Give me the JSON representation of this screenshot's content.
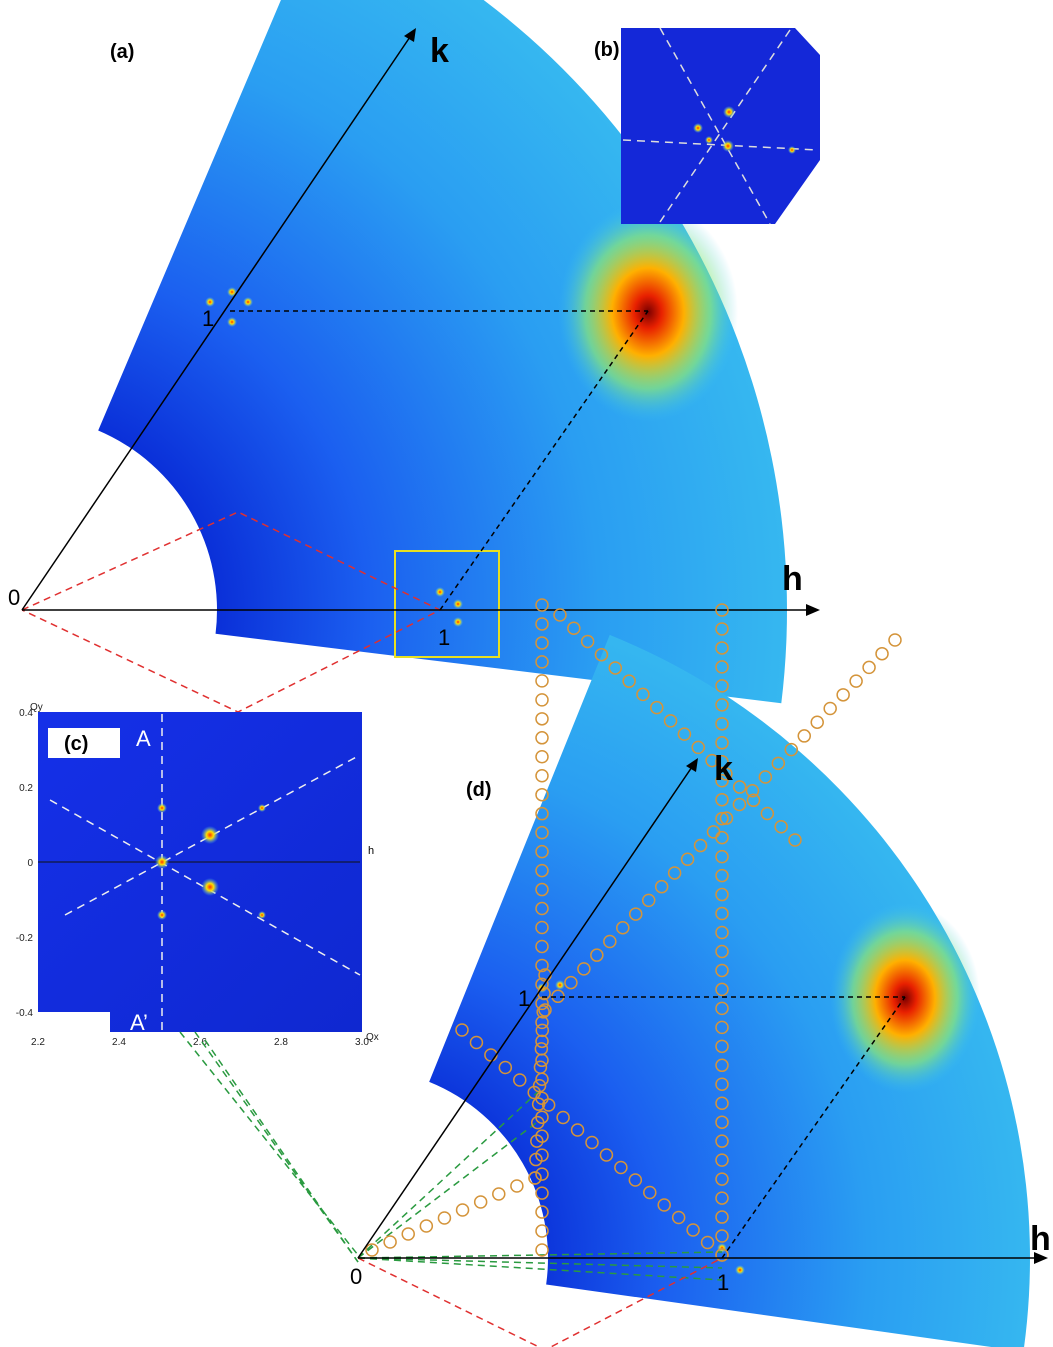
{
  "panel_a": {
    "label": "(a)",
    "axis_k": "k",
    "axis_h": "h",
    "origin": "0",
    "k_point": "1",
    "h_point": "1"
  },
  "panel_b": {
    "label": "(b)"
  },
  "panel_c": {
    "label": "(c)",
    "top_marker": "A",
    "bottom_marker": "A’",
    "h_label": "h",
    "y_axis_label": "Qy",
    "x_axis_label": "Qx",
    "yticks": [
      "0.4",
      "0.2",
      "0",
      "-0.2",
      "-0.4"
    ],
    "xticks": [
      "2.2",
      "2.4",
      "2.6",
      "2.8",
      "3.0"
    ]
  },
  "panel_d": {
    "label": "(d)",
    "axis_k": "k",
    "axis_h": "h",
    "origin": "0",
    "k_point": "1",
    "h_point": "1"
  }
}
